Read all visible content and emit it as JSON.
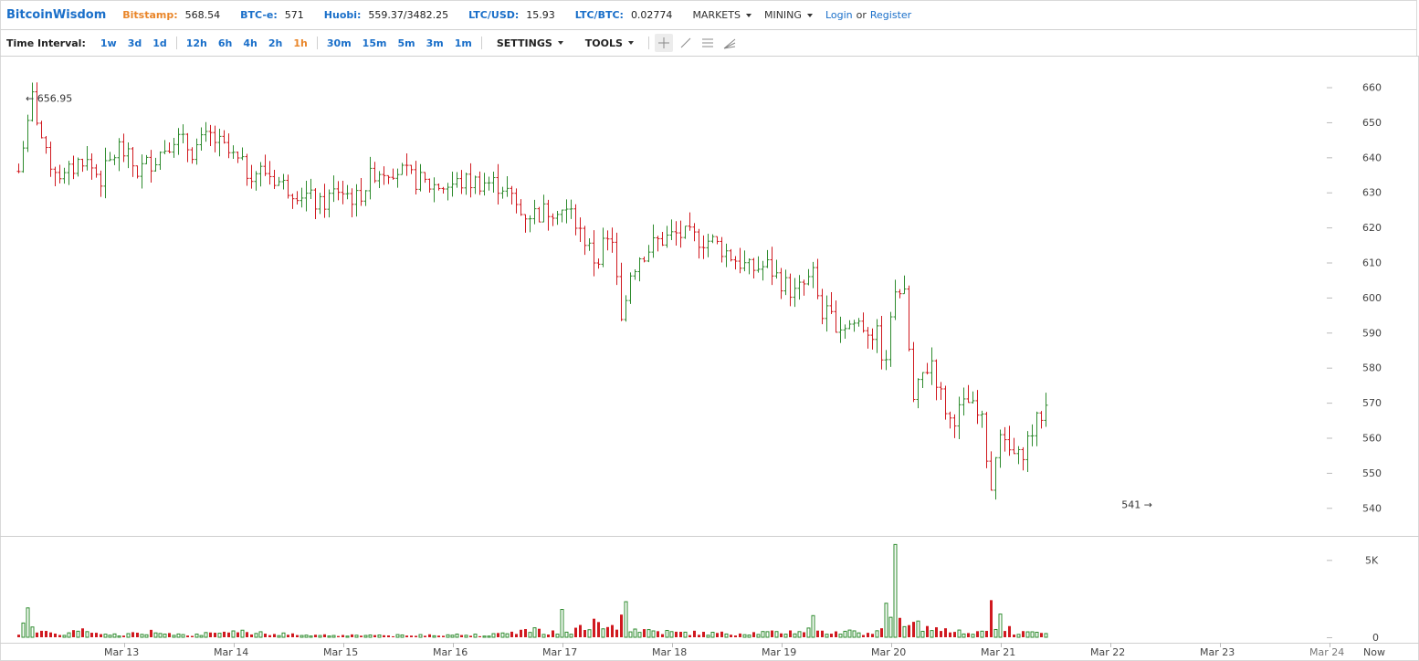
{
  "header": {
    "logo": "BitcoinWisdom",
    "markets": [
      {
        "label": "Bitstamp:",
        "value": "568.54",
        "color": "orange"
      },
      {
        "label": "BTC-e:",
        "value": "571",
        "color": "blue"
      },
      {
        "label": "Huobi:",
        "value": "559.37/3482.25",
        "color": "blue"
      },
      {
        "label": "LTC/USD:",
        "value": "15.93",
        "color": "blue"
      },
      {
        "label": "LTC/BTC:",
        "value": "0.02774",
        "color": "blue"
      }
    ],
    "menus": [
      "MARKETS",
      "MINING"
    ],
    "login": "Login",
    "or": "or",
    "register": "Register"
  },
  "toolbar": {
    "time_interval_label": "Time Interval:",
    "groups": [
      [
        "1w",
        "3d",
        "1d"
      ],
      [
        "12h",
        "6h",
        "4h",
        "2h",
        "1h"
      ],
      [
        "30m",
        "15m",
        "5m",
        "3m",
        "1m"
      ]
    ],
    "active_interval": "1h",
    "settings": "SETTINGS",
    "tools": "TOOLS",
    "tool_icons": [
      "crosshair-icon",
      "trendline-icon",
      "horizontal-lines-icon",
      "fan-icon"
    ]
  },
  "colors": {
    "up": "#2e8b2e",
    "down": "#d0191f",
    "accent": "#1a6fc9",
    "orange": "#e9862a",
    "grid": "#cfcfcf"
  },
  "chart_data": {
    "type": "ohlc",
    "price_axis": {
      "ticks": [
        540,
        550,
        560,
        570,
        580,
        590,
        600,
        610,
        620,
        630,
        640,
        650,
        660
      ],
      "ylim": [
        532,
        669
      ]
    },
    "volume_axis": {
      "tick_labels": [
        "0",
        "5K"
      ],
      "tick_values": [
        0,
        5000
      ],
      "ylim": [
        0,
        6200
      ]
    },
    "x_labels": [
      "Mar 13",
      "Mar 14",
      "Mar 15",
      "Mar 16",
      "Mar 17",
      "Mar 18",
      "Mar 19",
      "Mar 20",
      "Mar 21",
      "Mar 22",
      "Mar 23",
      "Mar 24",
      "Now"
    ],
    "x_label_day_index": [
      1,
      2,
      3,
      4,
      5,
      6,
      7,
      8,
      9,
      10,
      11,
      12,
      12.5
    ],
    "first_bar_day_index": 0.0,
    "bars_per_day": 24,
    "annotations": [
      {
        "text": "← 656.95",
        "price": 656.95,
        "side": "right"
      },
      {
        "text": "541 →",
        "price": 541,
        "side": "left"
      }
    ],
    "price_path": [
      [
        0,
        636
      ],
      [
        3,
        657
      ],
      [
        6,
        640
      ],
      [
        10,
        634
      ],
      [
        14,
        640
      ],
      [
        18,
        634
      ],
      [
        22,
        643
      ],
      [
        26,
        636
      ],
      [
        30,
        640
      ],
      [
        34,
        646
      ],
      [
        38,
        642
      ],
      [
        42,
        646
      ],
      [
        46,
        641
      ],
      [
        50,
        636
      ],
      [
        54,
        636
      ],
      [
        58,
        632
      ],
      [
        62,
        630
      ],
      [
        66,
        626
      ],
      [
        70,
        631
      ],
      [
        74,
        628
      ],
      [
        78,
        636
      ],
      [
        82,
        637
      ],
      [
        86,
        634
      ],
      [
        90,
        632
      ],
      [
        94,
        632
      ],
      [
        98,
        633
      ],
      [
        102,
        633
      ],
      [
        106,
        632
      ],
      [
        110,
        624
      ],
      [
        114,
        624
      ],
      [
        118,
        626
      ],
      [
        122,
        622
      ],
      [
        126,
        611
      ],
      [
        130,
        617
      ],
      [
        132,
        592
      ],
      [
        134,
        607
      ],
      [
        136,
        612
      ],
      [
        140,
        616
      ],
      [
        144,
        618
      ],
      [
        148,
        617
      ],
      [
        152,
        616
      ],
      [
        156,
        612
      ],
      [
        160,
        608
      ],
      [
        164,
        609
      ],
      [
        166,
        606
      ],
      [
        170,
        601
      ],
      [
        174,
        606
      ],
      [
        176,
        596
      ],
      [
        180,
        592
      ],
      [
        184,
        593
      ],
      [
        188,
        589
      ],
      [
        190,
        580
      ],
      [
        192,
        604
      ],
      [
        194,
        600
      ],
      [
        196,
        570
      ],
      [
        198,
        578
      ],
      [
        200,
        582
      ],
      [
        202,
        572
      ],
      [
        204,
        565
      ],
      [
        208,
        570
      ],
      [
        211,
        564
      ],
      [
        213,
        546
      ],
      [
        215,
        558
      ],
      [
        219,
        554
      ],
      [
        222,
        562
      ],
      [
        225,
        569
      ]
    ],
    "volume_path": [
      [
        0,
        250
      ],
      [
        2,
        1100
      ],
      [
        4,
        300
      ],
      [
        10,
        250
      ],
      [
        14,
        500
      ],
      [
        18,
        150
      ],
      [
        26,
        250
      ],
      [
        30,
        400
      ],
      [
        34,
        300
      ],
      [
        38,
        200
      ],
      [
        46,
        250
      ],
      [
        50,
        450
      ],
      [
        54,
        300
      ],
      [
        58,
        200
      ],
      [
        66,
        150
      ],
      [
        78,
        150
      ],
      [
        86,
        100
      ],
      [
        90,
        200
      ],
      [
        98,
        150
      ],
      [
        106,
        200
      ],
      [
        110,
        500
      ],
      [
        118,
        400
      ],
      [
        122,
        500
      ],
      [
        126,
        800
      ],
      [
        130,
        600
      ],
      [
        132,
        1600
      ],
      [
        134,
        600
      ],
      [
        140,
        400
      ],
      [
        144,
        300
      ],
      [
        148,
        300
      ],
      [
        152,
        250
      ],
      [
        160,
        300
      ],
      [
        166,
        300
      ],
      [
        170,
        400
      ],
      [
        174,
        500
      ],
      [
        180,
        400
      ],
      [
        188,
        300
      ],
      [
        190,
        2200
      ],
      [
        192,
        1800
      ],
      [
        194,
        800
      ],
      [
        196,
        900
      ],
      [
        200,
        500
      ],
      [
        204,
        400
      ],
      [
        208,
        300
      ],
      [
        212,
        1000
      ],
      [
        214,
        800
      ],
      [
        218,
        400
      ],
      [
        222,
        250
      ],
      [
        225,
        300
      ]
    ],
    "volume_spikes": [
      {
        "i": 192,
        "v": 6000
      },
      {
        "i": 190,
        "v": 2200
      },
      {
        "i": 213,
        "v": 2400
      },
      {
        "i": 133,
        "v": 2300
      },
      {
        "i": 119,
        "v": 1800
      },
      {
        "i": 126,
        "v": 1200
      },
      {
        "i": 174,
        "v": 1400
      },
      {
        "i": 2,
        "v": 1900
      },
      {
        "i": 215,
        "v": 1500
      }
    ]
  }
}
